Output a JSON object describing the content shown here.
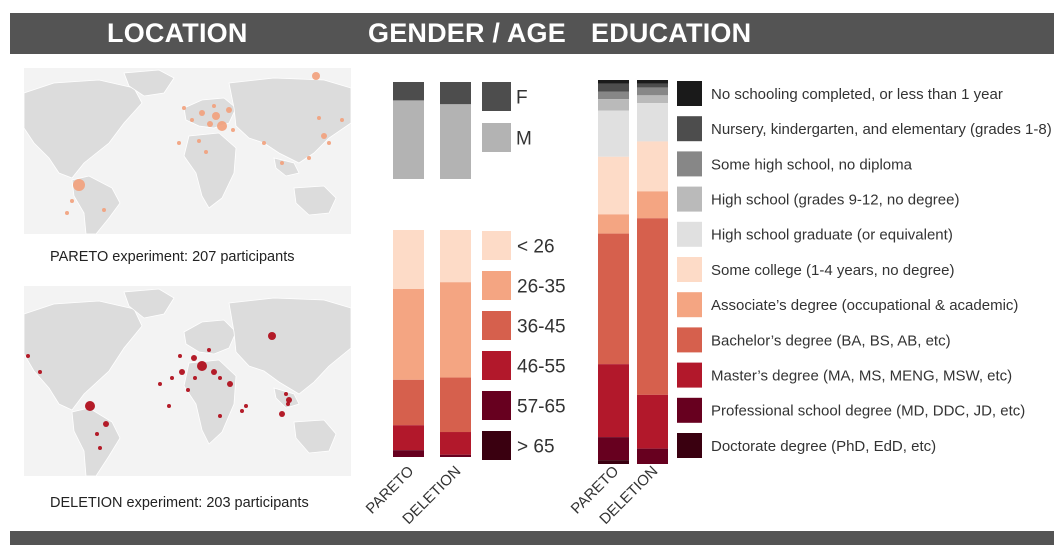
{
  "sections": {
    "location": "LOCATION",
    "gender_age": "GENDER / AGE",
    "education": "EDUCATION"
  },
  "maps": {
    "pareto_caption": "PARETO experiment: 207 participants",
    "deletion_caption": "DELETION experiment: 203 participants",
    "pareto_dot_color": "#f2a07b",
    "deletion_dot_color": "#b0101d"
  },
  "chart_data": [
    {
      "type": "bar",
      "stacked": true,
      "title": "",
      "categories": [
        "PARETO",
        "DELETION"
      ],
      "series": [
        {
          "name": "F",
          "color": "#4d4d4d",
          "values": [
            19,
            23
          ]
        },
        {
          "name": "M",
          "color": "#b3b3b3",
          "values": [
            81,
            77
          ]
        }
      ],
      "legend_placement": "right"
    },
    {
      "type": "bar",
      "stacked": true,
      "title": "",
      "categories": [
        "PARETO",
        "DELETION"
      ],
      "series": [
        {
          "name": "< 26",
          "color": "#fddbc7",
          "values": [
            26,
            23
          ]
        },
        {
          "name": "26-35",
          "color": "#f4a582",
          "values": [
            40,
            42
          ]
        },
        {
          "name": "36-45",
          "color": "#d6604d",
          "values": [
            20,
            24
          ]
        },
        {
          "name": "46-55",
          "color": "#b2182b",
          "values": [
            11,
            10
          ]
        },
        {
          "name": "57-65",
          "color": "#67001f",
          "values": [
            3,
            1
          ]
        },
        {
          "name": "> 65",
          "color": "#3a0010",
          "values": [
            0,
            0
          ]
        }
      ],
      "xlabel_rotation": "diagonal",
      "legend_placement": "right"
    },
    {
      "type": "bar",
      "stacked": true,
      "title": "",
      "categories": [
        "PARETO",
        "DELETION"
      ],
      "series": [
        {
          "name": "No schooling completed, or less than 1 year",
          "color": "#1a1a1a",
          "values": [
            1,
            1
          ]
        },
        {
          "name": "Nursery, kindergarten, and elementary (grades 1-8)",
          "color": "#4d4d4d",
          "values": [
            2,
            1
          ]
        },
        {
          "name": "Some high school, no diploma",
          "color": "#878787",
          "values": [
            2,
            2
          ]
        },
        {
          "name": "High school (grades 9-12, no degree)",
          "color": "#bababa",
          "values": [
            3,
            2
          ]
        },
        {
          "name": "High school graduate (or equivalent)",
          "color": "#e0e0e0",
          "values": [
            12,
            10
          ]
        },
        {
          "name": "Some college (1-4 years, no degree)",
          "color": "#fddbc7",
          "values": [
            15,
            13
          ]
        },
        {
          "name": "Associate’s degree (occupational & academic)",
          "color": "#f4a582",
          "values": [
            5,
            7
          ]
        },
        {
          "name": "Bachelor’s degree (BA, BS, AB, etc)",
          "color": "#d6604d",
          "values": [
            34,
            46
          ]
        },
        {
          "name": "Master’s degree (MA, MS, MENG, MSW, etc)",
          "color": "#b2182b",
          "values": [
            19,
            14
          ]
        },
        {
          "name": "Professional school degree (MD, DDC, JD, etc)",
          "color": "#67001f",
          "values": [
            6,
            4
          ]
        },
        {
          "name": "Doctorate degree (PhD, EdD, etc)",
          "color": "#3a0010",
          "values": [
            1,
            0
          ]
        }
      ],
      "xlabel_rotation": "diagonal",
      "legend_placement": "right"
    }
  ]
}
